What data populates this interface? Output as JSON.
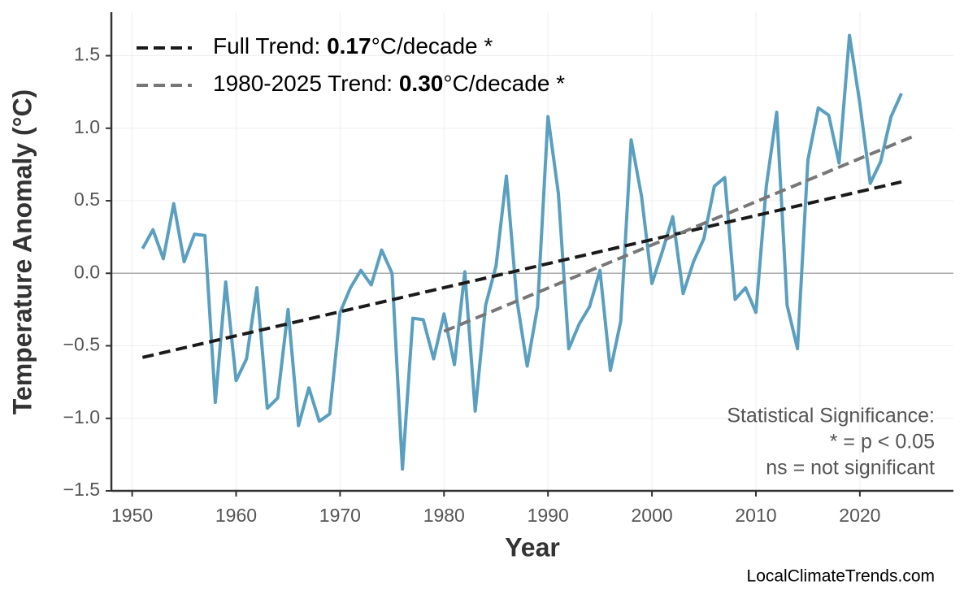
{
  "chart_data": {
    "type": "line",
    "x_label": "Year",
    "y_label": "Temperature Anomaly (°C)",
    "xlim": [
      1948,
      2029
    ],
    "ylim": [
      -1.5,
      1.8
    ],
    "xticks": [
      1950,
      1960,
      1970,
      1980,
      1990,
      2000,
      2010,
      2020
    ],
    "yticks": [
      {
        "value": -1.5,
        "label": "−1.5"
      },
      {
        "value": -1.0,
        "label": "−1.0"
      },
      {
        "value": -0.5,
        "label": "−0.5"
      },
      {
        "value": 0,
        "label": "0.0"
      },
      0.5,
      {
        "value": 1.0,
        "label": "1.0"
      },
      1.5
    ],
    "grid": true,
    "zero_line": true,
    "series": [
      {
        "color": "#5a9fbf",
        "x": [
          1951,
          1952,
          1953,
          1954,
          1955,
          1956,
          1957,
          1958,
          1959,
          1960,
          1961,
          1962,
          1963,
          1964,
          1965,
          1966,
          1967,
          1968,
          1969,
          1970,
          1971,
          1972,
          1973,
          1974,
          1975,
          1976,
          1977,
          1978,
          1979,
          1980,
          1981,
          1982,
          1983,
          1984,
          1985,
          1986,
          1987,
          1988,
          1989,
          1990,
          1991,
          1992,
          1993,
          1994,
          1995,
          1996,
          1997,
          1998,
          1999,
          2000,
          2001,
          2002,
          2003,
          2004,
          2005,
          2006,
          2007,
          2008,
          2009,
          2010,
          2011,
          2012,
          2013,
          2014,
          2015,
          2016,
          2017,
          2018,
          2019,
          2020,
          2021,
          2022,
          2023,
          2024
        ],
        "values": [
          0.17,
          0.3,
          0.1,
          0.48,
          0.08,
          0.27,
          0.26,
          -0.89,
          -0.06,
          -0.74,
          -0.59,
          -0.1,
          -0.93,
          -0.86,
          -0.25,
          -1.05,
          -0.79,
          -1.02,
          -0.97,
          -0.27,
          -0.1,
          0.02,
          -0.08,
          0.16,
          0.0,
          -1.35,
          -0.31,
          -0.32,
          -0.59,
          -0.28,
          -0.63,
          0.01,
          -0.95,
          -0.22,
          0.05,
          0.67,
          -0.18,
          -0.64,
          -0.23,
          1.08,
          0.55,
          -0.52,
          -0.35,
          -0.23,
          0.02,
          -0.67,
          -0.33,
          0.92,
          0.53,
          -0.07,
          0.15,
          0.39,
          -0.14,
          0.08,
          0.24,
          0.6,
          0.66,
          -0.18,
          -0.1,
          -0.27,
          0.6,
          1.11,
          -0.22,
          -0.52,
          0.78,
          1.14,
          1.09,
          0.76,
          1.64,
          1.17,
          0.62,
          0.77,
          1.08,
          1.24
        ]
      }
    ],
    "trend_lines": [
      {
        "label": "Full Trend: ",
        "rate": "0.17",
        "unit": "°C/decade *",
        "color": "#1a1a1a",
        "x": [
          1951,
          2024
        ],
        "values": [
          -0.58,
          0.63
        ]
      },
      {
        "label": "1980-2025 Trend: ",
        "rate": "0.30",
        "unit": "°C/decade *",
        "color": "#777777",
        "x": [
          1980,
          2025
        ],
        "values": [
          -0.4,
          0.94
        ]
      }
    ],
    "annotation": [
      "Statistical Significance:",
      "* = p < 0.05",
      "ns = not significant"
    ],
    "watermark": "LocalClimateTrends.com"
  }
}
